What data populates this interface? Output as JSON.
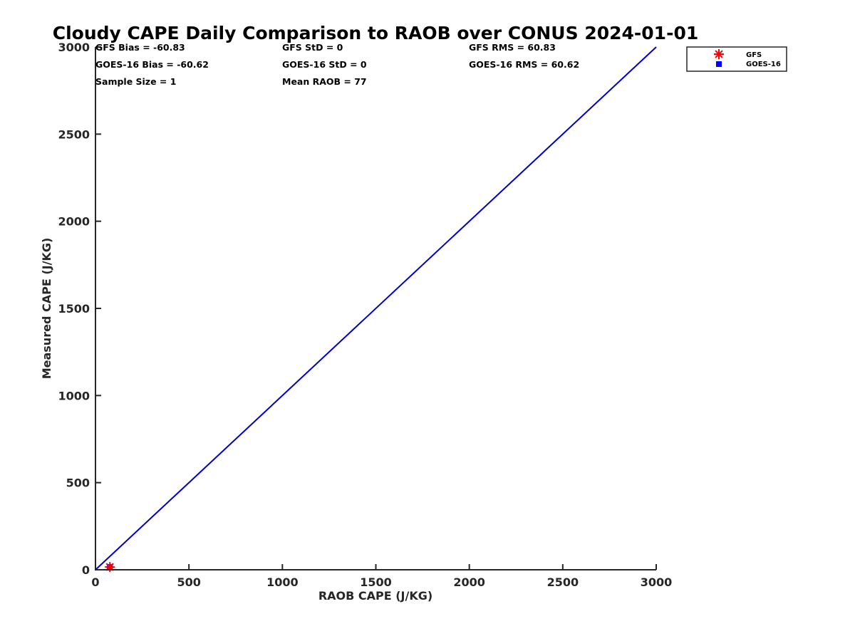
{
  "chart_data": {
    "type": "scatter",
    "title": "Cloudy CAPE Daily Comparison to RAOB over CONUS 2024-01-01",
    "xlabel": "RAOB CAPE (J/KG)",
    "ylabel": "Measured CAPE (J/KG)",
    "xlim": [
      0,
      3000
    ],
    "ylim": [
      0,
      3000
    ],
    "x_ticks": [
      "0",
      "500",
      "1000",
      "1500",
      "2000",
      "2500",
      "3000"
    ],
    "y_ticks": [
      "0",
      "500",
      "1000",
      "1500",
      "2000",
      "2500",
      "3000"
    ],
    "grid": false,
    "legend_position": "top-right (outside)",
    "reference_line": {
      "x": [
        0,
        3000
      ],
      "y": [
        0,
        3000
      ],
      "color": "#0000cc"
    },
    "series": [
      {
        "name": "GFS",
        "marker": "asterisk",
        "color": "#ff0000",
        "x": [
          77
        ],
        "y": [
          16
        ]
      },
      {
        "name": "GOES-16",
        "marker": "square",
        "color": "#0000ff",
        "x": [
          77
        ],
        "y": [
          16
        ]
      }
    ],
    "stats": [
      [
        "GFS Bias = -60.83",
        "GFS StD = 0",
        "GFS RMS = 60.83"
      ],
      [
        "GOES-16 Bias = -60.62",
        "GOES-16 StD = 0",
        "GOES-16 RMS = 60.62"
      ],
      [
        "Sample Size = 1",
        "Mean RAOB = 77",
        ""
      ]
    ]
  }
}
